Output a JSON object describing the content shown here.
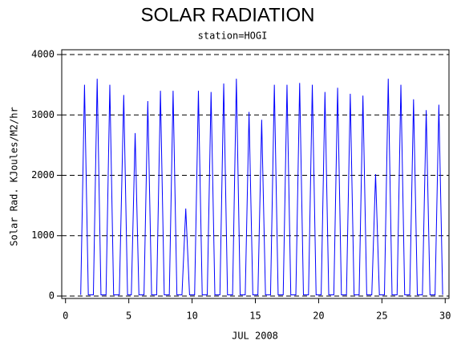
{
  "chart_data": {
    "type": "line",
    "title": "SOLAR RADIATION",
    "subtitle": "station=HOGI",
    "x_label": "JUL 2008",
    "y_label": "Solar Rad. KJoules/M2/hr",
    "xlim": [
      -0.3,
      30.3
    ],
    "ylim": [
      -40,
      4080
    ],
    "xticks": [
      0,
      5,
      10,
      15,
      20,
      25,
      30
    ],
    "yticks": [
      0,
      1000,
      2000,
      3000,
      4000
    ],
    "grid": true,
    "series": [
      {
        "name": "Solar Rad.",
        "color": "#0000ff",
        "x": [
          1.2,
          1.5,
          1.8,
          2.2,
          2.5,
          2.8,
          3.2,
          3.5,
          3.8,
          4.25,
          4.6,
          4.9,
          5.2,
          5.5,
          5.8,
          6.2,
          6.5,
          6.8,
          7.2,
          7.5,
          7.8,
          8.2,
          8.5,
          8.8,
          9.2,
          9.5,
          9.8,
          10.2,
          10.5,
          10.8,
          11.2,
          11.5,
          11.8,
          12.2,
          12.5,
          12.8,
          13.2,
          13.5,
          13.8,
          14.2,
          14.5,
          14.8,
          15.2,
          15.5,
          15.8,
          16.2,
          16.5,
          16.8,
          17.2,
          17.5,
          17.8,
          18.2,
          18.5,
          18.8,
          19.2,
          19.5,
          19.8,
          20.2,
          20.5,
          20.8,
          21.2,
          21.5,
          21.8,
          22.2,
          22.5,
          22.8,
          23.2,
          23.5,
          23.8,
          24.2,
          24.5,
          24.8,
          25.2,
          25.5,
          25.8,
          26.2,
          26.5,
          26.8,
          27.2,
          27.5,
          27.8,
          28.2,
          28.5,
          28.8,
          29.2,
          29.5,
          29.8
        ],
        "values": [
          20,
          3500,
          20,
          20,
          3600,
          20,
          20,
          3500,
          20,
          20,
          3330,
          20,
          20,
          2700,
          20,
          20,
          3230,
          20,
          20,
          3400,
          20,
          20,
          3400,
          20,
          20,
          1450,
          20,
          20,
          3400,
          20,
          20,
          3380,
          20,
          20,
          3520,
          20,
          20,
          3600,
          20,
          20,
          3050,
          20,
          20,
          2920,
          20,
          20,
          3500,
          20,
          20,
          3500,
          20,
          20,
          3530,
          20,
          20,
          3500,
          20,
          20,
          3380,
          20,
          20,
          3450,
          20,
          20,
          3350,
          20,
          20,
          3320,
          20,
          20,
          2020,
          20,
          20,
          3600,
          20,
          20,
          3500,
          20,
          20,
          3260,
          20,
          20,
          3080,
          20,
          20,
          3170,
          20
        ]
      }
    ]
  }
}
